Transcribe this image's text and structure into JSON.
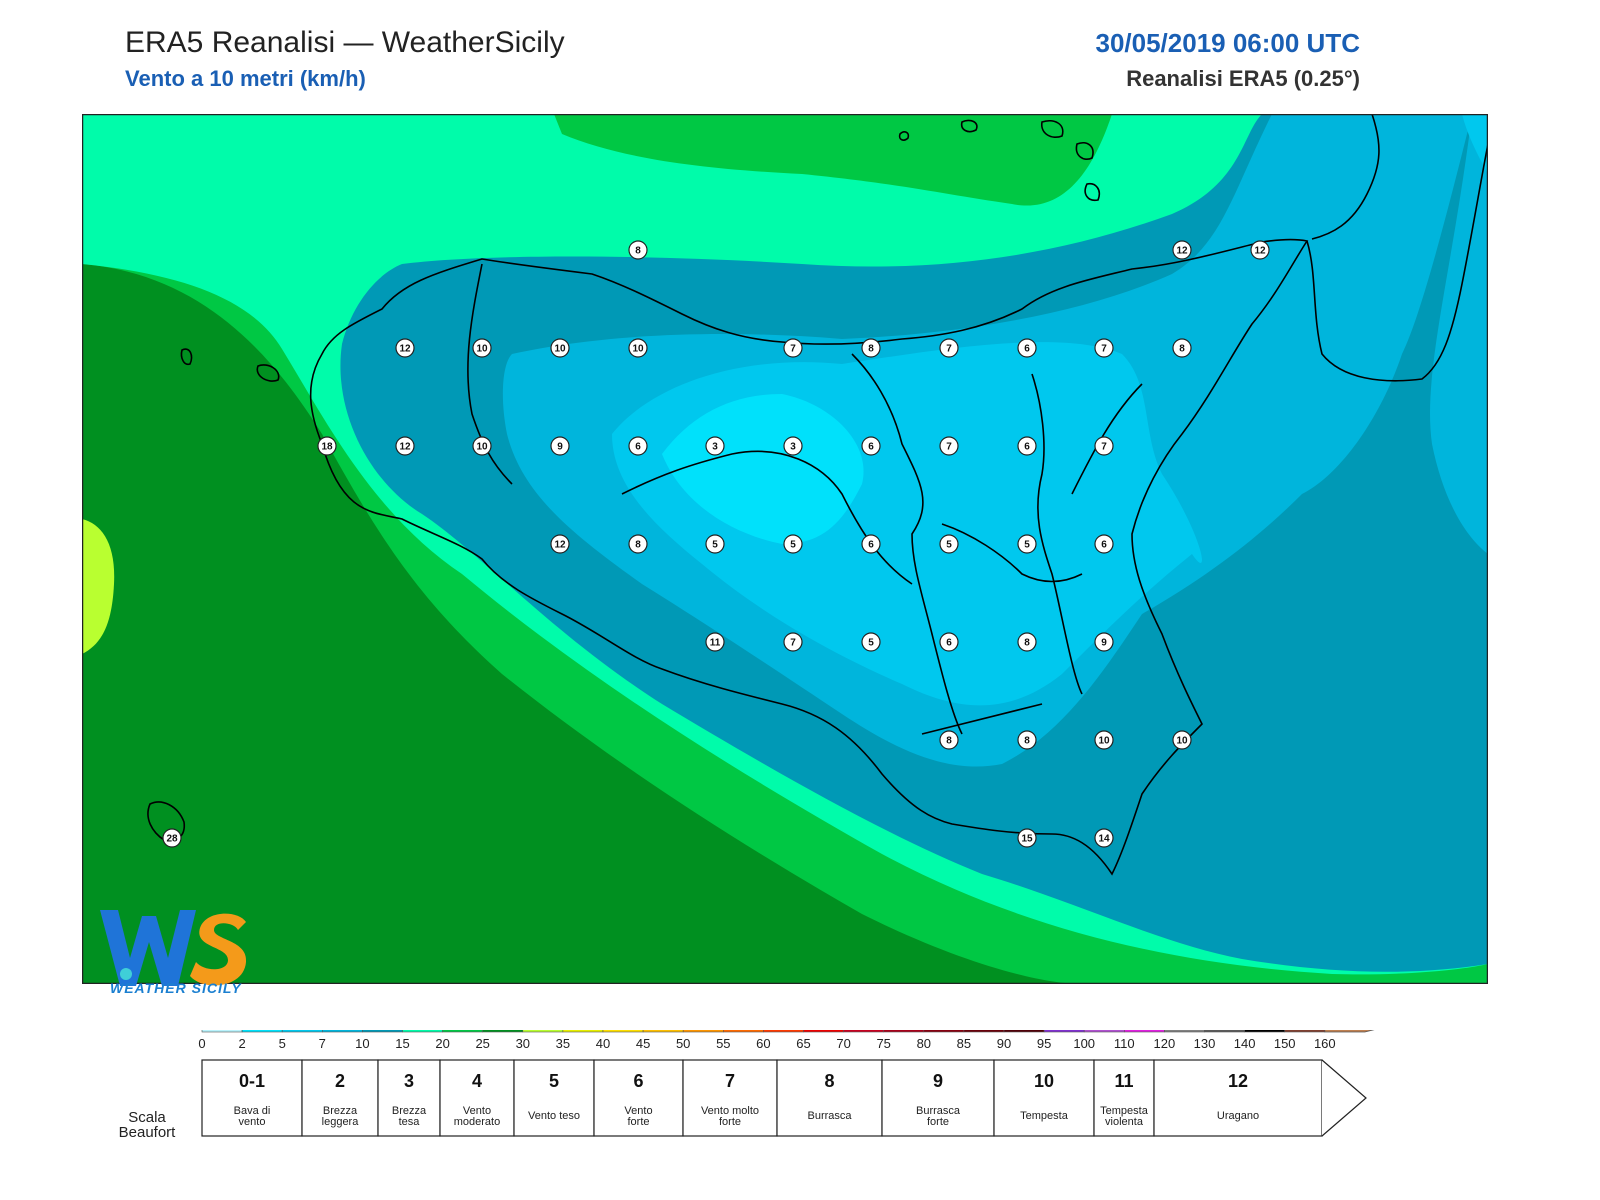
{
  "header": {
    "title": "ERA5 Reanalisi — WeatherSicily",
    "subtitle": "Vento a 10 metri (km/h)",
    "datetime": "30/05/2019 06:00 UTC",
    "source": "Reanalisi ERA5 (0.25°)"
  },
  "logo": {
    "name": "WeatherSicily logo",
    "text": "WEATHER SICILY",
    "letters": "WS"
  },
  "colorbar": {
    "colors": [
      "#b8f2fb",
      "#00e1fb",
      "#00c8ee",
      "#00b5dc",
      "#0099b6",
      "#00fcaa",
      "#00c844",
      "#009020",
      "#b9ff30",
      "#e8f000",
      "#ffe000",
      "#ffc000",
      "#ff9600",
      "#ff6a00",
      "#ff3a00",
      "#ee0000",
      "#c80020",
      "#a8001a",
      "#880010",
      "#6a000a",
      "#500008",
      "#8030d0",
      "#b050d0",
      "#e020e0",
      "#808080",
      "#5a5a5a",
      "#000000",
      "#804030",
      "#c08050"
    ],
    "ticks": [
      "0",
      "2",
      "5",
      "7",
      "10",
      "15",
      "20",
      "25",
      "30",
      "35",
      "40",
      "45",
      "50",
      "55",
      "60",
      "65",
      "70",
      "75",
      "80",
      "85",
      "90",
      "95",
      "100",
      "110",
      "120",
      "130",
      "140",
      "150",
      "160"
    ]
  },
  "beaufort": {
    "label": "Scala Beaufort",
    "classes": [
      {
        "num": "0-1",
        "desc": "Bava di vento"
      },
      {
        "num": "2",
        "desc": "Brezza leggera"
      },
      {
        "num": "3",
        "desc": "Brezza tesa"
      },
      {
        "num": "4",
        "desc": "Vento moderato"
      },
      {
        "num": "5",
        "desc": "Vento teso"
      },
      {
        "num": "6",
        "desc": "Vento forte"
      },
      {
        "num": "7",
        "desc": "Vento molto forte"
      },
      {
        "num": "8",
        "desc": "Burrasca"
      },
      {
        "num": "9",
        "desc": "Burrasca forte"
      },
      {
        "num": "10",
        "desc": "Tempesta"
      },
      {
        "num": "11",
        "desc": "Tempesta violenta"
      },
      {
        "num": "12",
        "desc": "Uragano"
      }
    ]
  },
  "stations": [
    "12",
    "12",
    "12",
    "10",
    "10",
    "10",
    "8",
    "7",
    "8",
    "7",
    "6",
    "7",
    "8",
    "18",
    "12",
    "10",
    "9",
    "6",
    "3",
    "3",
    "6",
    "7",
    "6",
    "7",
    "12",
    "8",
    "5",
    "5",
    "6",
    "5",
    "5",
    "6",
    "11",
    "7",
    "5",
    "6",
    "8",
    "9",
    "8",
    "8",
    "10",
    "10",
    "28",
    "15",
    "14"
  ]
}
